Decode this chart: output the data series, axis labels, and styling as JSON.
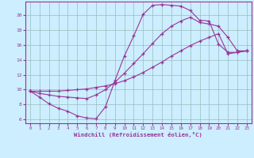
{
  "bg_color": "#cceeff",
  "line_color": "#993399",
  "grid_color": "#99bbbb",
  "xlabel": "Windchill (Refroidissement éolien,°C)",
  "xlim": [
    -0.5,
    23.5
  ],
  "ylim": [
    5.5,
    21.8
  ],
  "xticks": [
    0,
    1,
    2,
    3,
    4,
    5,
    6,
    7,
    8,
    9,
    10,
    11,
    12,
    13,
    14,
    15,
    16,
    17,
    18,
    19,
    20,
    21,
    22,
    23
  ],
  "yticks": [
    6,
    8,
    10,
    12,
    14,
    16,
    18,
    20
  ],
  "line1_x": [
    0,
    1,
    2,
    3,
    4,
    5,
    6,
    7,
    8,
    9,
    10,
    11,
    12,
    13,
    14,
    15,
    16,
    17,
    18,
    19,
    20,
    21,
    22,
    23
  ],
  "line1_y": [
    9.8,
    9.0,
    8.1,
    7.5,
    7.1,
    6.5,
    6.2,
    6.1,
    7.7,
    11.2,
    14.5,
    17.2,
    20.1,
    21.3,
    21.4,
    21.3,
    21.2,
    20.6,
    19.3,
    19.2,
    16.1,
    15.0,
    15.0,
    15.2
  ],
  "line2_x": [
    0,
    1,
    2,
    3,
    4,
    5,
    6,
    7,
    8,
    9,
    10,
    11,
    12,
    13,
    14,
    15,
    16,
    17,
    18,
    19,
    20,
    21,
    22,
    23
  ],
  "line2_y": [
    9.8,
    9.5,
    9.3,
    9.1,
    9.0,
    8.9,
    8.8,
    9.3,
    10.0,
    11.0,
    12.2,
    13.5,
    14.8,
    16.2,
    17.5,
    18.5,
    19.2,
    19.7,
    19.0,
    18.8,
    18.5,
    17.0,
    15.2,
    15.2
  ],
  "line3_x": [
    0,
    1,
    2,
    3,
    4,
    5,
    6,
    7,
    8,
    9,
    10,
    11,
    12,
    13,
    14,
    15,
    16,
    17,
    18,
    19,
    20,
    21,
    22,
    23
  ],
  "line3_y": [
    9.8,
    9.8,
    9.8,
    9.8,
    9.9,
    10.0,
    10.1,
    10.3,
    10.5,
    10.8,
    11.2,
    11.7,
    12.3,
    13.0,
    13.7,
    14.5,
    15.2,
    15.9,
    16.5,
    17.0,
    17.5,
    14.8,
    15.0,
    15.2
  ]
}
